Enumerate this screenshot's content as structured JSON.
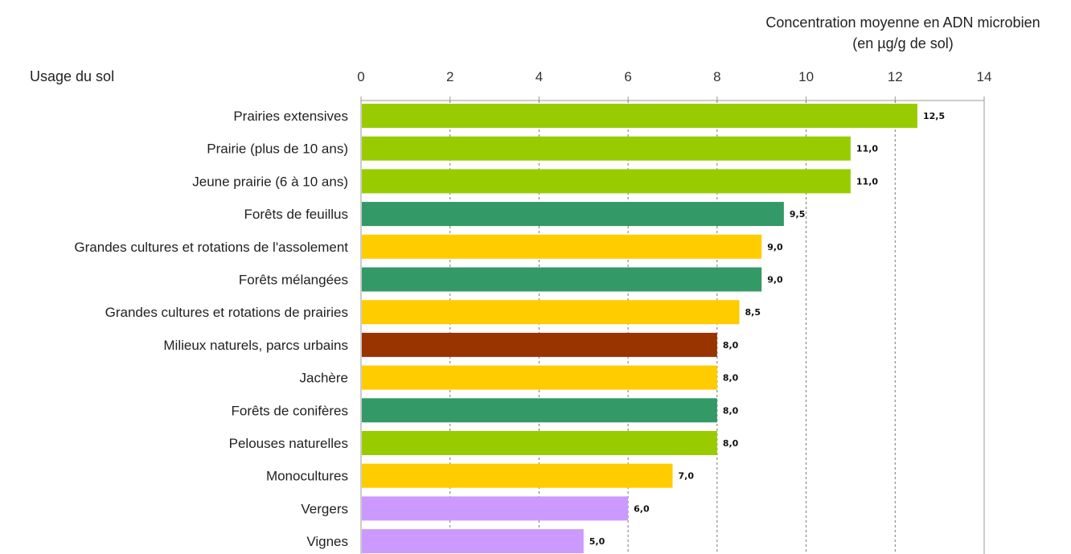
{
  "chart_data": {
    "type": "bar",
    "orientation": "horizontal",
    "title": "Concentration moyenne en ADN microbien",
    "subtitle": "(en µg/g de sol)",
    "ylabel": "Usage du sol",
    "xlim": [
      0,
      14
    ],
    "ticks": [
      "0",
      "2",
      "4",
      "6",
      "8",
      "10",
      "12",
      "14"
    ],
    "grid": true,
    "axis_position": "top",
    "categories": [
      "Prairies extensives",
      "Prairie (plus de 10 ans)",
      "Jeune prairie (6 à 10 ans)",
      "Forêts de feuillus",
      "Grandes cultures et rotations de l'assolement",
      "Forêts mélangées",
      "Grandes cultures et rotations de prairies",
      "Milieux naturels, parcs urbains",
      "Jachère",
      "Forêts de conifères",
      "Pelouses naturelles",
      "Monocultures",
      "Vergers",
      "Vignes"
    ],
    "values": [
      12.5,
      11.0,
      11.0,
      9.5,
      9.0,
      9.0,
      8.5,
      8.0,
      8.0,
      8.0,
      8.0,
      7.0,
      6.0,
      5.0
    ],
    "value_labels": [
      "12,5",
      "11,0",
      "11,0",
      "9,5",
      "9,0",
      "9,0",
      "8,5",
      "8,0",
      "8,0",
      "8,0",
      "8,0",
      "7,0",
      "6,0",
      "5,0"
    ],
    "colors": [
      "#99cc00",
      "#99cc00",
      "#99cc00",
      "#339966",
      "#ffcc00",
      "#339966",
      "#ffcc00",
      "#993300",
      "#ffcc00",
      "#339966",
      "#99cc00",
      "#ffcc00",
      "#cc99ff",
      "#cc99ff"
    ]
  }
}
